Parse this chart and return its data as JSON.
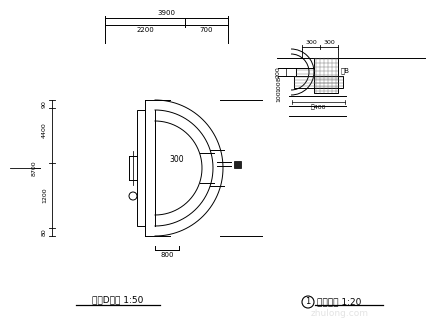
{
  "bg_color": "#ffffff",
  "line_color": "#000000",
  "title1": "花池D平面 1:50",
  "title2": "竖泉大样 1:20",
  "dim_top_total": "3900",
  "dim_top_left": "2200",
  "dim_top_right": "700",
  "left_dim_top": "90",
  "left_dim_mid_top": "4400",
  "left_dim_mid": "1200",
  "left_dim_bot": "80",
  "center_label": "300",
  "bottom_dim": "800",
  "right_label": "工B",
  "right_dim_bot": "污400",
  "watermark": "zhulong.com"
}
